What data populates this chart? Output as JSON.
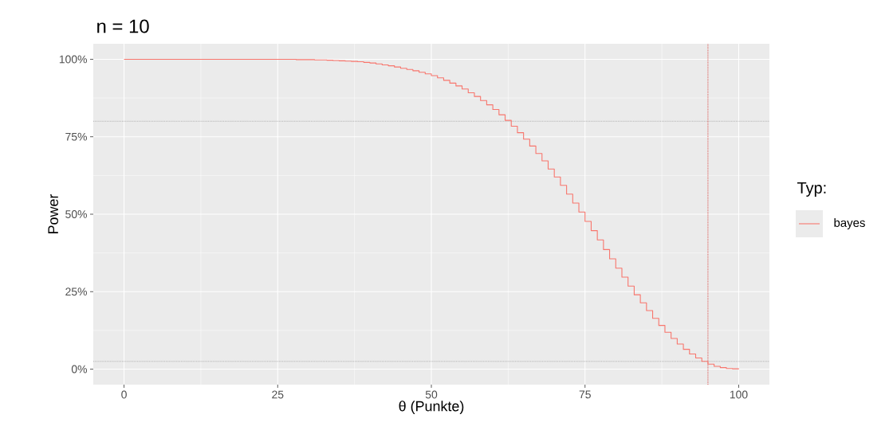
{
  "chart_data": {
    "type": "step",
    "title": "n = 10",
    "xlabel": "θ (Punkte)",
    "ylabel": "Power",
    "legend_title": "Typ:",
    "x": [
      0,
      1,
      2,
      3,
      4,
      5,
      6,
      7,
      8,
      9,
      10,
      11,
      12,
      13,
      14,
      15,
      16,
      17,
      18,
      19,
      20,
      21,
      22,
      23,
      24,
      25,
      26,
      27,
      28,
      29,
      30,
      31,
      32,
      33,
      34,
      35,
      36,
      37,
      38,
      39,
      40,
      41,
      42,
      43,
      44,
      45,
      46,
      47,
      48,
      49,
      50,
      51,
      52,
      53,
      54,
      55,
      56,
      57,
      58,
      59,
      60,
      61,
      62,
      63,
      64,
      65,
      66,
      67,
      68,
      69,
      70,
      71,
      72,
      73,
      74,
      75,
      76,
      77,
      78,
      79,
      80,
      81,
      82,
      83,
      84,
      85,
      86,
      87,
      88,
      89,
      90,
      91,
      92,
      93,
      94,
      95,
      96,
      97,
      98,
      99,
      100
    ],
    "series": [
      {
        "name": "bayes",
        "color": "#f8766d",
        "values": [
          100,
          100,
          100,
          100,
          100,
          100,
          100,
          100,
          100,
          100,
          100,
          100,
          100,
          100,
          100,
          100,
          100,
          100,
          100,
          100,
          100,
          100,
          100,
          100,
          100,
          100,
          100,
          100,
          99.9,
          99.9,
          99.9,
          99.8,
          99.8,
          99.7,
          99.6,
          99.5,
          99.4,
          99.3,
          99.2,
          99.0,
          98.8,
          98.5,
          98.2,
          97.9,
          97.5,
          97.1,
          96.7,
          96.3,
          95.8,
          95.3,
          94.7,
          94.0,
          93.2,
          92.3,
          91.4,
          90.4,
          89.2,
          88.0,
          86.7,
          85.3,
          83.8,
          82.1,
          80.3,
          78.4,
          76.3,
          74.2,
          72.0,
          69.6,
          67.2,
          64.6,
          62.0,
          59.3,
          56.5,
          53.6,
          50.7,
          47.7,
          44.7,
          41.7,
          38.6,
          35.6,
          32.6,
          29.7,
          26.8,
          24.0,
          21.4,
          18.9,
          16.4,
          14.1,
          11.9,
          9.9,
          8.1,
          6.4,
          4.9,
          3.6,
          2.5,
          1.6,
          0.9,
          0.5,
          0.2,
          0.1,
          0.0
        ]
      }
    ],
    "xlim": [
      -5,
      105
    ],
    "ylim": [
      -5,
      105
    ],
    "xticks": [
      0,
      25,
      50,
      75,
      100
    ],
    "yticks": [
      {
        "value": 0,
        "label": "0%"
      },
      {
        "value": 25,
        "label": "25%"
      },
      {
        "value": 50,
        "label": "50%"
      },
      {
        "value": 75,
        "label": "75%"
      },
      {
        "value": 100,
        "label": "100%"
      }
    ],
    "ref_lines": [
      {
        "axis": "y",
        "value": 80,
        "color": "#a6a6a6",
        "line_style": "dotted"
      },
      {
        "axis": "y",
        "value": 2.5,
        "color": "#a6a6a6",
        "line_style": "dotted"
      },
      {
        "axis": "x",
        "value": 95,
        "color": "#d9302a",
        "line_style": "dotted"
      }
    ],
    "grid": true,
    "legend": "right",
    "line_style": "solid",
    "marker": "none"
  }
}
